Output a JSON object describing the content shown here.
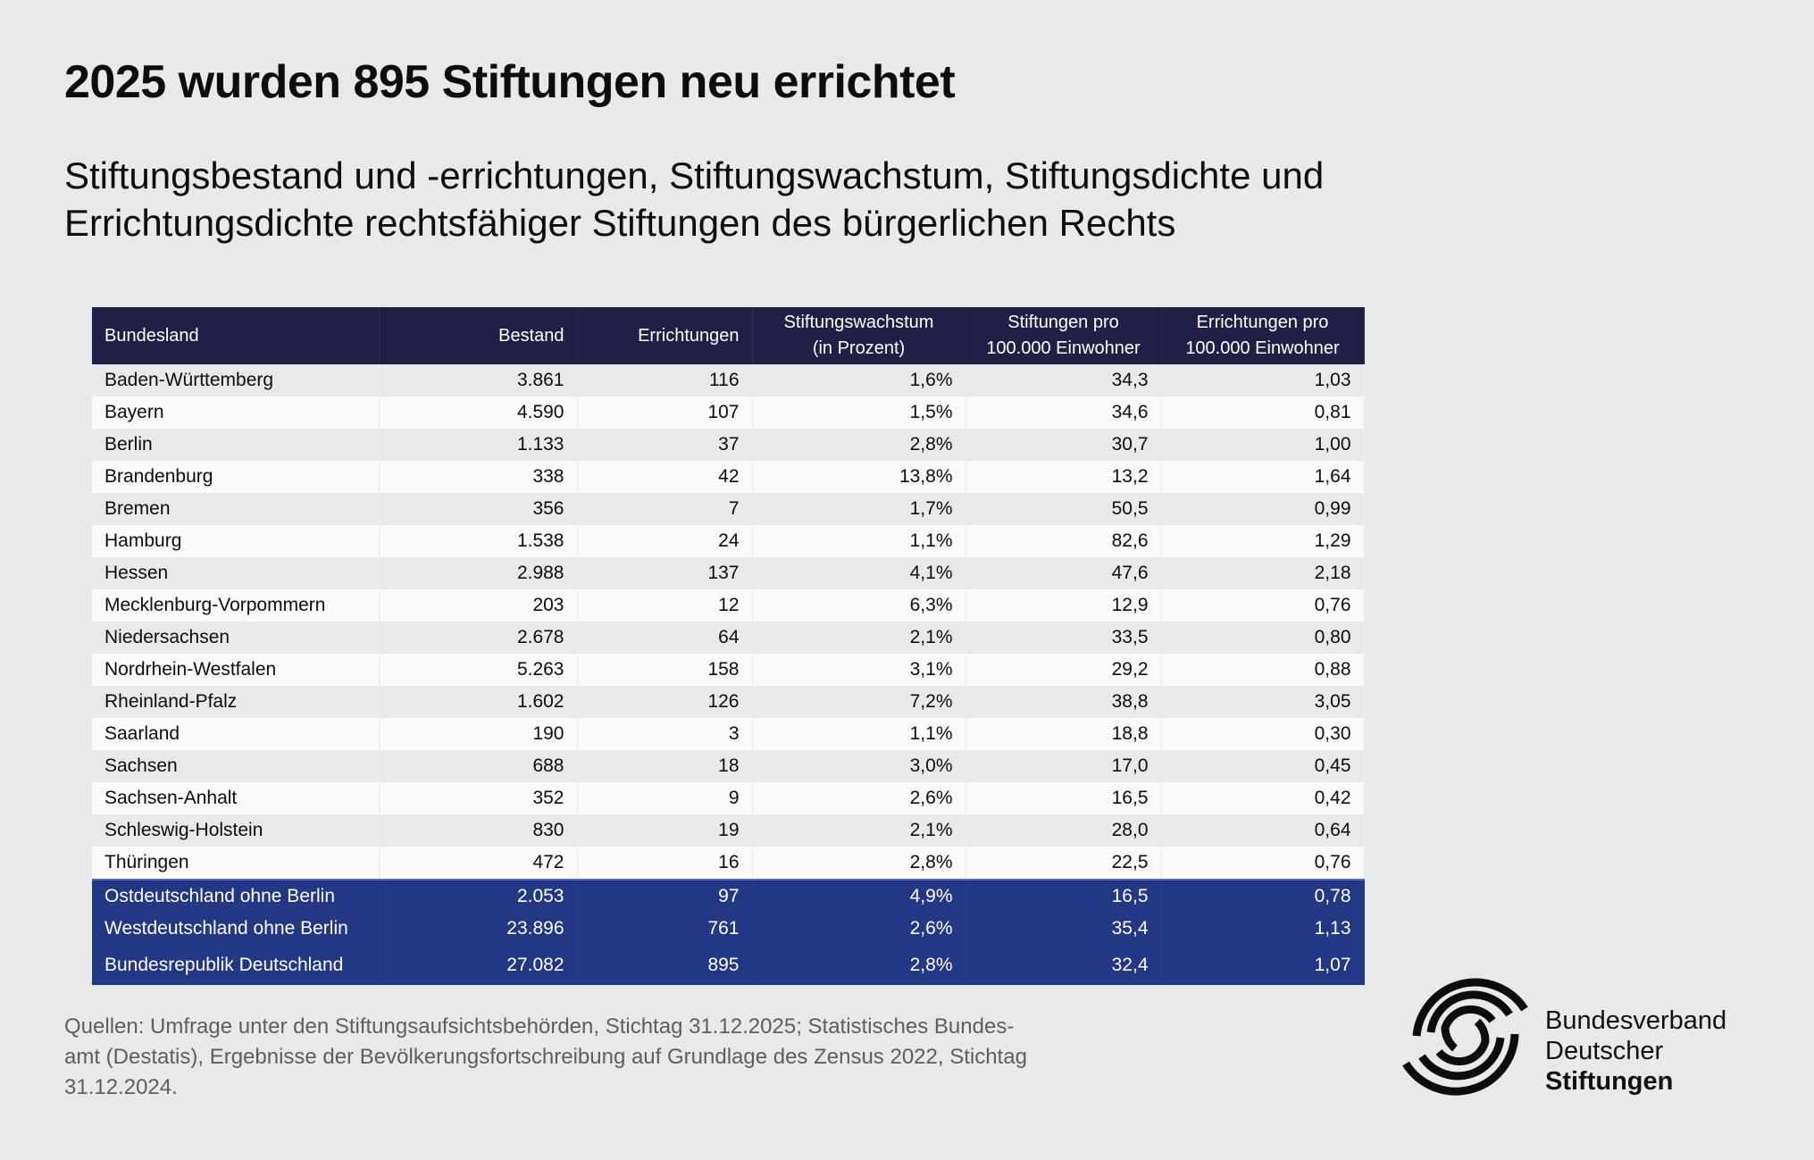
{
  "header": {
    "title": "2025 wurden 895 Stiftungen neu errichtet",
    "subtitle": "Stiftungsbestand und -errichtungen, Stiftungswachstum, Stiftungsdichte und Errichtungsdichte rechtsfähiger Stiftungen des bürgerlichen Rechts"
  },
  "chart_data": {
    "type": "table",
    "title": "2025 wurden 895 Stiftungen neu errichtet",
    "subtitle": "Stiftungsbestand und -errichtungen, Stiftungswachstum, Stiftungsdichte und Errichtungsdichte rechtsfähiger Stiftungen des bürgerlichen Rechts",
    "columns": [
      "Bundesland",
      "Bestand",
      "Errichtungen",
      "Stiftungswachstum (in Prozent)",
      "Stiftungen pro 100.000 Einwohner",
      "Errichtungen pro 100.000 Einwohner"
    ],
    "header_lines": [
      [
        "Bundesland"
      ],
      [
        "Bestand"
      ],
      [
        "Errichtungen"
      ],
      [
        "Stiftungswachstum",
        "(in Prozent)"
      ],
      [
        "Stiftungen pro",
        "100.000 Einwohner"
      ],
      [
        "Errichtungen pro",
        "100.000 Einwohner"
      ]
    ],
    "rows": [
      [
        "Baden-Württemberg",
        "3.861",
        "116",
        "1,6%",
        "34,3",
        "1,03"
      ],
      [
        "Bayern",
        "4.590",
        "107",
        "1,5%",
        "34,6",
        "0,81"
      ],
      [
        "Berlin",
        "1.133",
        "37",
        "2,8%",
        "30,7",
        "1,00"
      ],
      [
        "Brandenburg",
        "338",
        "42",
        "13,8%",
        "13,2",
        "1,64"
      ],
      [
        "Bremen",
        "356",
        "7",
        "1,7%",
        "50,5",
        "0,99"
      ],
      [
        "Hamburg",
        "1.538",
        "24",
        "1,1%",
        "82,6",
        "1,29"
      ],
      [
        "Hessen",
        "2.988",
        "137",
        "4,1%",
        "47,6",
        "2,18"
      ],
      [
        "Mecklenburg-Vorpommern",
        "203",
        "12",
        "6,3%",
        "12,9",
        "0,76"
      ],
      [
        "Niedersachsen",
        "2.678",
        "64",
        "2,1%",
        "33,5",
        "0,80"
      ],
      [
        "Nordrhein-Westfalen",
        "5.263",
        "158",
        "3,1%",
        "29,2",
        "0,88"
      ],
      [
        "Rheinland-Pfalz",
        "1.602",
        "126",
        "7,2%",
        "38,8",
        "3,05"
      ],
      [
        "Saarland",
        "190",
        "3",
        "1,1%",
        "18,8",
        "0,30"
      ],
      [
        "Sachsen",
        "688",
        "18",
        "3,0%",
        "17,0",
        "0,45"
      ],
      [
        "Sachsen-Anhalt",
        "352",
        "9",
        "2,6%",
        "16,5",
        "0,42"
      ],
      [
        "Schleswig-Holstein",
        "830",
        "19",
        "2,1%",
        "28,0",
        "0,64"
      ],
      [
        "Thüringen",
        "472",
        "16",
        "2,8%",
        "22,5",
        "0,76"
      ]
    ],
    "summary_rows": [
      [
        "Ostdeutschland ohne Berlin",
        "2.053",
        "97",
        "4,9%",
        "16,5",
        "0,78"
      ],
      [
        "Westdeutschland ohne Berlin",
        "23.896",
        "761",
        "2,6%",
        "35,4",
        "1,13"
      ],
      [
        "Bundesrepublik Deutschland",
        "27.082",
        "895",
        "2,8%",
        "32,4",
        "1,07"
      ]
    ]
  },
  "footer": {
    "source_lines": [
      "Quellen: Umfrage unter den Stiftungsaufsichtsbehörden, Stichtag 31.12.2025; Statistisches Bundes-",
      "amt (Destatis), Ergebnisse der Bevölkerungsfortschreibung auf Grundlage des Zensus 2022, Stichtag",
      "31.12.2024."
    ]
  },
  "logo": {
    "icon": "bundesverband-s-logo-icon",
    "line1": "Bundesverband",
    "line2": "Deutscher",
    "line3": "Stiftungen"
  },
  "colors": {
    "background": "#e8e9eb",
    "header_bg": "#201f45",
    "summary_bg": "#243785",
    "row_alt": "#fafafa",
    "text": "#0d0d0d",
    "footnote": "#5e5e5e"
  }
}
